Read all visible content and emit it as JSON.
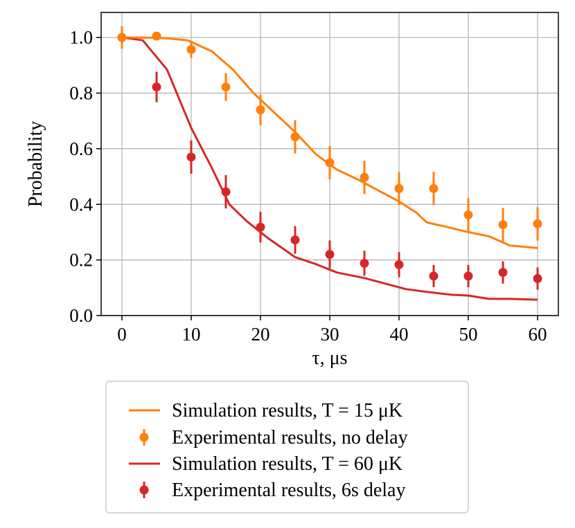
{
  "chart_data": {
    "type": "line",
    "xlabel": "τ, μs",
    "ylabel": "Probability",
    "xlim": [
      -3,
      63
    ],
    "ylim": [
      0.0,
      1.09
    ],
    "xticks": [
      0,
      10,
      20,
      30,
      40,
      50,
      60
    ],
    "yticks": [
      0.0,
      0.2,
      0.4,
      0.6,
      0.8,
      1.0
    ],
    "xtick_labels": [
      "0",
      "10",
      "20",
      "30",
      "40",
      "50",
      "60"
    ],
    "ytick_labels": [
      "0.0",
      "0.2",
      "0.4",
      "0.6",
      "0.8",
      "1.0"
    ],
    "grid": true,
    "legend_position": "below",
    "series": [
      {
        "name": "Simulation results, T = 15 μK",
        "kind": "line",
        "color": "#ff7f0e",
        "x": [
          0,
          3,
          6,
          9.5,
          13,
          16,
          19,
          22,
          25,
          28,
          31,
          34,
          37,
          40,
          42.5,
          44,
          47,
          50,
          53,
          56,
          60
        ],
        "y": [
          1.0,
          1.0,
          0.998,
          0.99,
          0.95,
          0.885,
          0.8,
          0.73,
          0.66,
          0.58,
          0.525,
          0.49,
          0.45,
          0.41,
          0.37,
          0.335,
          0.318,
          0.3,
          0.285,
          0.252,
          0.243
        ]
      },
      {
        "name": "Experimental results, no delay",
        "kind": "errorbar",
        "color": "#ff7f0e",
        "x": [
          0,
          5,
          10,
          15,
          20,
          25,
          30,
          35,
          40,
          45,
          50,
          55,
          60
        ],
        "y": [
          1.0,
          1.005,
          0.957,
          0.822,
          0.74,
          0.643,
          0.55,
          0.497,
          0.457,
          0.457,
          0.362,
          0.327,
          0.33
        ],
        "yerr": [
          0.04,
          0.01,
          0.03,
          0.05,
          0.055,
          0.06,
          0.06,
          0.06,
          0.06,
          0.06,
          0.06,
          0.06,
          0.06
        ]
      },
      {
        "name": "Simulation results, T = 60 μK",
        "kind": "line",
        "color": "#d62728",
        "x": [
          0,
          3,
          6.5,
          10,
          13,
          15.5,
          18,
          21,
          25,
          28,
          31,
          35,
          38,
          41,
          44,
          47.5,
          50,
          53,
          56,
          60
        ],
        "y": [
          1.0,
          0.99,
          0.885,
          0.675,
          0.53,
          0.4,
          0.34,
          0.28,
          0.21,
          0.185,
          0.155,
          0.135,
          0.115,
          0.095,
          0.085,
          0.075,
          0.072,
          0.06,
          0.06,
          0.057
        ]
      },
      {
        "name": "Experimental results, 6s delay",
        "kind": "errorbar",
        "color": "#d62728",
        "x": [
          0,
          5,
          10,
          15,
          20,
          25,
          30,
          35,
          40,
          45,
          50,
          55,
          60
        ],
        "y": [
          1.0,
          0.822,
          0.57,
          0.445,
          0.318,
          0.272,
          0.22,
          0.188,
          0.183,
          0.142,
          0.142,
          0.155,
          0.133
        ],
        "yerr": [
          0.04,
          0.055,
          0.06,
          0.06,
          0.055,
          0.05,
          0.05,
          0.045,
          0.045,
          0.04,
          0.04,
          0.04,
          0.04
        ]
      }
    ]
  }
}
